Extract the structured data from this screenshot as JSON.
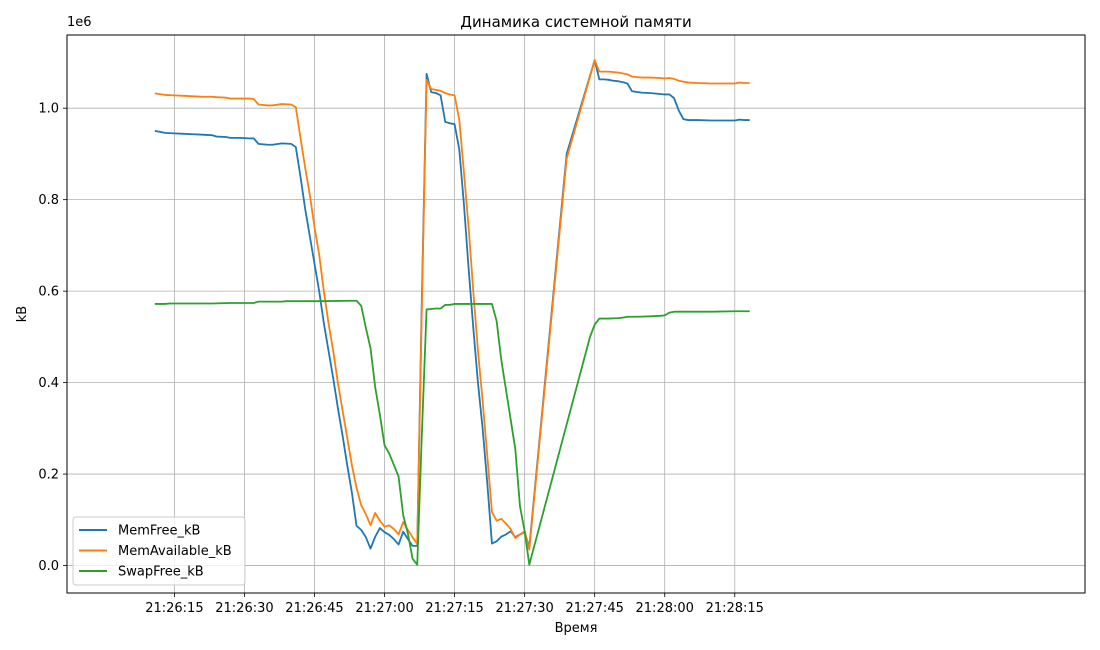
{
  "chart_data": {
    "type": "line",
    "title": "Динамика системной памяти",
    "xlabel": "Время",
    "ylabel": "kB",
    "y_offset_label": "1e6",
    "x_range_seconds": [
      -8,
      210
    ],
    "xlim": [
      "21:26:02",
      "21:28:20"
    ],
    "ylim": [
      -0.06,
      1.16
    ],
    "y_scale_note": "values in units of 1e6 kB",
    "x_ticks": [
      {
        "s": 15,
        "label": "21:26:15"
      },
      {
        "s": 30,
        "label": "21:26:30"
      },
      {
        "s": 45,
        "label": "21:26:45"
      },
      {
        "s": 60,
        "label": "21:27:00"
      },
      {
        "s": 75,
        "label": "21:27:15"
      },
      {
        "s": 90,
        "label": "21:27:30"
      },
      {
        "s": 105,
        "label": "21:27:45"
      },
      {
        "s": 120,
        "label": "21:28:00"
      },
      {
        "s": 135,
        "label": "21:28:15"
      }
    ],
    "y_ticks": [
      {
        "v": 0.0,
        "label": "0.0"
      },
      {
        "v": 0.2,
        "label": "0.2"
      },
      {
        "v": 0.4,
        "label": "0.4"
      },
      {
        "v": 0.6,
        "label": "0.6"
      },
      {
        "v": 0.8,
        "label": "0.8"
      },
      {
        "v": 1.0,
        "label": "1.0"
      }
    ],
    "grid": true,
    "legend_position": "lower-left",
    "time_base": "21:26:00",
    "series": [
      {
        "name": "MemFree_kB",
        "color": "#1f77b4",
        "points": [
          [
            11,
            0.95
          ],
          [
            13,
            0.946
          ],
          [
            15,
            0.945
          ],
          [
            17,
            0.944
          ],
          [
            19,
            0.943
          ],
          [
            21,
            0.942
          ],
          [
            23,
            0.941
          ],
          [
            24,
            0.938
          ],
          [
            26,
            0.937
          ],
          [
            27,
            0.935
          ],
          [
            29,
            0.935
          ],
          [
            31,
            0.934
          ],
          [
            32,
            0.934
          ],
          [
            33,
            0.922
          ],
          [
            35,
            0.92
          ],
          [
            36,
            0.92
          ],
          [
            38,
            0.923
          ],
          [
            40,
            0.922
          ],
          [
            41,
            0.915
          ],
          [
            42,
            0.85
          ],
          [
            43,
            0.78
          ],
          [
            44,
            0.72
          ],
          [
            45,
            0.66
          ],
          [
            46,
            0.6
          ],
          [
            47,
            0.53
          ],
          [
            48,
            0.47
          ],
          [
            49,
            0.41
          ],
          [
            50,
            0.345
          ],
          [
            51,
            0.285
          ],
          [
            52,
            0.22
          ],
          [
            53,
            0.16
          ],
          [
            54,
            0.087
          ],
          [
            55,
            0.078
          ],
          [
            56,
            0.062
          ],
          [
            57,
            0.037
          ],
          [
            58,
            0.063
          ],
          [
            59,
            0.082
          ],
          [
            60,
            0.073
          ],
          [
            61,
            0.067
          ],
          [
            62,
            0.058
          ],
          [
            63,
            0.046
          ],
          [
            64,
            0.074
          ],
          [
            65,
            0.058
          ],
          [
            66,
            0.043
          ],
          [
            67,
            0.043
          ],
          [
            68,
            0.59
          ],
          [
            69,
            1.075
          ],
          [
            70,
            1.035
          ],
          [
            71,
            1.033
          ],
          [
            72,
            1.028
          ],
          [
            73,
            0.97
          ],
          [
            74,
            0.967
          ],
          [
            75,
            0.965
          ],
          [
            76,
            0.91
          ],
          [
            77,
            0.79
          ],
          [
            78,
            0.65
          ],
          [
            79,
            0.52
          ],
          [
            80,
            0.4
          ],
          [
            81,
            0.3
          ],
          [
            82,
            0.18
          ],
          [
            83,
            0.048
          ],
          [
            84,
            0.053
          ],
          [
            85,
            0.063
          ],
          [
            86,
            0.068
          ],
          [
            87,
            0.075
          ],
          [
            88,
            0.062
          ],
          [
            89,
            0.068
          ],
          [
            90,
            0.073
          ],
          [
            91,
            0.04
          ],
          [
            99,
            0.9
          ],
          [
            105,
            1.105
          ],
          [
            106,
            1.063
          ],
          [
            107,
            1.063
          ],
          [
            108,
            1.062
          ],
          [
            109,
            1.06
          ],
          [
            110,
            1.059
          ],
          [
            111,
            1.057
          ],
          [
            112,
            1.054
          ],
          [
            113,
            1.037
          ],
          [
            115,
            1.034
          ],
          [
            117,
            1.033
          ],
          [
            119,
            1.031
          ],
          [
            120,
            1.03
          ],
          [
            121,
            1.03
          ],
          [
            122,
            1.022
          ],
          [
            123,
            0.995
          ],
          [
            124,
            0.976
          ],
          [
            125,
            0.974
          ],
          [
            127,
            0.974
          ],
          [
            130,
            0.973
          ],
          [
            133,
            0.973
          ],
          [
            135,
            0.973
          ],
          [
            136,
            0.975
          ],
          [
            137,
            0.974
          ],
          [
            138,
            0.974
          ]
        ]
      },
      {
        "name": "MemAvailable_kB",
        "color": "#ff7f0e",
        "points": [
          [
            11,
            1.032
          ],
          [
            13,
            1.029
          ],
          [
            15,
            1.028
          ],
          [
            17,
            1.027
          ],
          [
            19,
            1.026
          ],
          [
            21,
            1.025
          ],
          [
            23,
            1.025
          ],
          [
            24,
            1.024
          ],
          [
            26,
            1.023
          ],
          [
            27,
            1.021
          ],
          [
            29,
            1.021
          ],
          [
            31,
            1.021
          ],
          [
            32,
            1.02
          ],
          [
            33,
            1.008
          ],
          [
            35,
            1.006
          ],
          [
            36,
            1.006
          ],
          [
            38,
            1.009
          ],
          [
            40,
            1.008
          ],
          [
            41,
            1.002
          ],
          [
            42,
            0.935
          ],
          [
            43,
            0.87
          ],
          [
            44,
            0.81
          ],
          [
            45,
            0.74
          ],
          [
            46,
            0.68
          ],
          [
            47,
            0.6
          ],
          [
            48,
            0.53
          ],
          [
            49,
            0.47
          ],
          [
            50,
            0.4
          ],
          [
            51,
            0.34
          ],
          [
            52,
            0.28
          ],
          [
            53,
            0.22
          ],
          [
            54,
            0.17
          ],
          [
            55,
            0.132
          ],
          [
            56,
            0.112
          ],
          [
            57,
            0.088
          ],
          [
            58,
            0.115
          ],
          [
            59,
            0.098
          ],
          [
            60,
            0.085
          ],
          [
            61,
            0.088
          ],
          [
            62,
            0.08
          ],
          [
            63,
            0.068
          ],
          [
            64,
            0.095
          ],
          [
            65,
            0.078
          ],
          [
            66,
            0.062
          ],
          [
            67,
            0.047
          ],
          [
            68,
            0.57
          ],
          [
            69,
            1.062
          ],
          [
            70,
            1.042
          ],
          [
            71,
            1.04
          ],
          [
            72,
            1.038
          ],
          [
            73,
            1.033
          ],
          [
            74,
            1.03
          ],
          [
            75,
            1.028
          ],
          [
            76,
            0.975
          ],
          [
            77,
            0.86
          ],
          [
            78,
            0.74
          ],
          [
            79,
            0.6
          ],
          [
            80,
            0.47
          ],
          [
            81,
            0.36
          ],
          [
            82,
            0.24
          ],
          [
            83,
            0.117
          ],
          [
            84,
            0.098
          ],
          [
            85,
            0.102
          ],
          [
            86,
            0.092
          ],
          [
            87,
            0.08
          ],
          [
            88,
            0.06
          ],
          [
            89,
            0.068
          ],
          [
            90,
            0.075
          ],
          [
            91,
            0.035
          ],
          [
            99,
            0.89
          ],
          [
            105,
            1.105
          ],
          [
            106,
            1.08
          ],
          [
            108,
            1.08
          ],
          [
            110,
            1.078
          ],
          [
            111,
            1.076
          ],
          [
            112,
            1.074
          ],
          [
            113,
            1.069
          ],
          [
            115,
            1.067
          ],
          [
            117,
            1.067
          ],
          [
            119,
            1.066
          ],
          [
            120,
            1.065
          ],
          [
            121,
            1.066
          ],
          [
            122,
            1.064
          ],
          [
            123,
            1.06
          ],
          [
            124,
            1.058
          ],
          [
            125,
            1.056
          ],
          [
            127,
            1.055
          ],
          [
            130,
            1.054
          ],
          [
            133,
            1.054
          ],
          [
            135,
            1.054
          ],
          [
            136,
            1.056
          ],
          [
            137,
            1.055
          ],
          [
            138,
            1.055
          ]
        ]
      },
      {
        "name": "SwapFree_kB",
        "color": "#2ca02c",
        "points": [
          [
            11,
            0.572
          ],
          [
            13,
            0.572
          ],
          [
            14,
            0.573
          ],
          [
            17,
            0.573
          ],
          [
            21,
            0.573
          ],
          [
            23,
            0.573
          ],
          [
            27,
            0.574
          ],
          [
            32,
            0.574
          ],
          [
            33,
            0.577
          ],
          [
            38,
            0.577
          ],
          [
            39,
            0.578
          ],
          [
            46,
            0.578
          ],
          [
            53,
            0.579
          ],
          [
            54,
            0.579
          ],
          [
            55,
            0.568
          ],
          [
            56,
            0.52
          ],
          [
            57,
            0.475
          ],
          [
            58,
            0.39
          ],
          [
            59,
            0.33
          ],
          [
            60,
            0.263
          ],
          [
            61,
            0.245
          ],
          [
            62,
            0.22
          ],
          [
            63,
            0.195
          ],
          [
            64,
            0.11
          ],
          [
            65,
            0.07
          ],
          [
            66,
            0.015
          ],
          [
            67,
            0.002
          ],
          [
            68,
            0.29
          ],
          [
            69,
            0.56
          ],
          [
            70,
            0.561
          ],
          [
            71,
            0.562
          ],
          [
            72,
            0.562
          ],
          [
            73,
            0.57
          ],
          [
            74,
            0.57
          ],
          [
            75,
            0.572
          ],
          [
            80,
            0.572
          ],
          [
            81,
            0.572
          ],
          [
            83,
            0.572
          ],
          [
            84,
            0.535
          ],
          [
            85,
            0.45
          ],
          [
            86,
            0.385
          ],
          [
            87,
            0.32
          ],
          [
            88,
            0.255
          ],
          [
            89,
            0.13
          ],
          [
            90,
            0.075
          ],
          [
            91,
            0.002
          ],
          [
            104,
            0.5
          ],
          [
            105,
            0.527
          ],
          [
            106,
            0.54
          ],
          [
            108,
            0.54
          ],
          [
            110,
            0.541
          ],
          [
            111,
            0.542
          ],
          [
            112,
            0.544
          ],
          [
            114,
            0.544
          ],
          [
            117,
            0.545
          ],
          [
            119,
            0.546
          ],
          [
            120,
            0.547
          ],
          [
            121,
            0.553
          ],
          [
            122,
            0.555
          ],
          [
            125,
            0.555
          ],
          [
            130,
            0.555
          ],
          [
            135,
            0.556
          ],
          [
            138,
            0.556
          ]
        ]
      }
    ]
  }
}
